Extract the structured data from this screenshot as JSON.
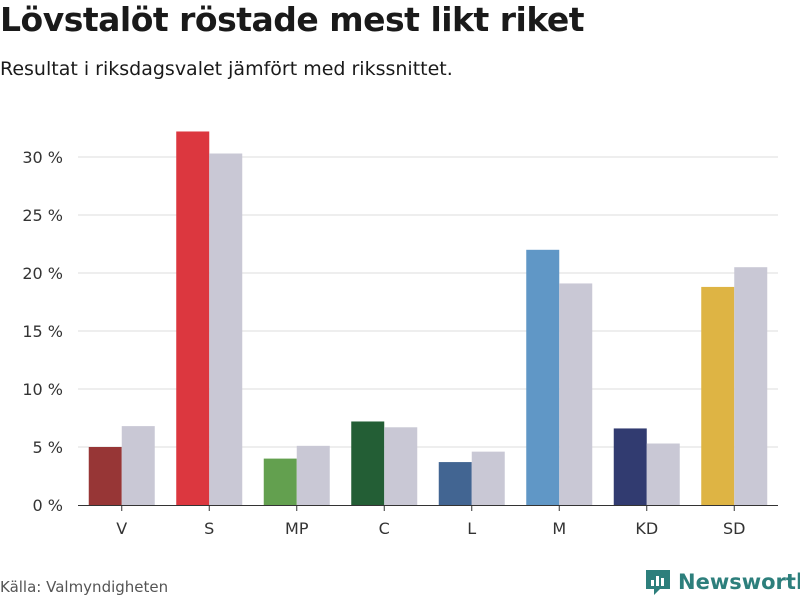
{
  "title": "Lövstalöt röstade mest likt riket",
  "subtitle": "Resultat i riksdagsvalet jämfört med rikssnittet.",
  "source": "Källa: Valmyndigheten",
  "brand": "Newsworthy",
  "chart_data": {
    "type": "bar",
    "categories": [
      "V",
      "S",
      "MP",
      "C",
      "L",
      "M",
      "KD",
      "SD"
    ],
    "series": [
      {
        "values": [
          5.0,
          32.2,
          4.0,
          7.2,
          3.7,
          22.0,
          6.6,
          18.8
        ],
        "colors": [
          "#973636",
          "#dc373f",
          "#63a04f",
          "#235e35",
          "#426592",
          "#6097c6",
          "#313b70",
          "#deb444"
        ]
      },
      {
        "values": [
          6.8,
          30.3,
          5.1,
          6.7,
          4.6,
          19.1,
          5.3,
          20.5
        ],
        "color": "#c9c8d5"
      }
    ],
    "yticks": [
      "0 %",
      "5 %",
      "10 %",
      "15 %",
      "20 %",
      "25 %",
      "30 %"
    ],
    "ylim": [
      0,
      30
    ],
    "grid": true,
    "legend": "none"
  }
}
